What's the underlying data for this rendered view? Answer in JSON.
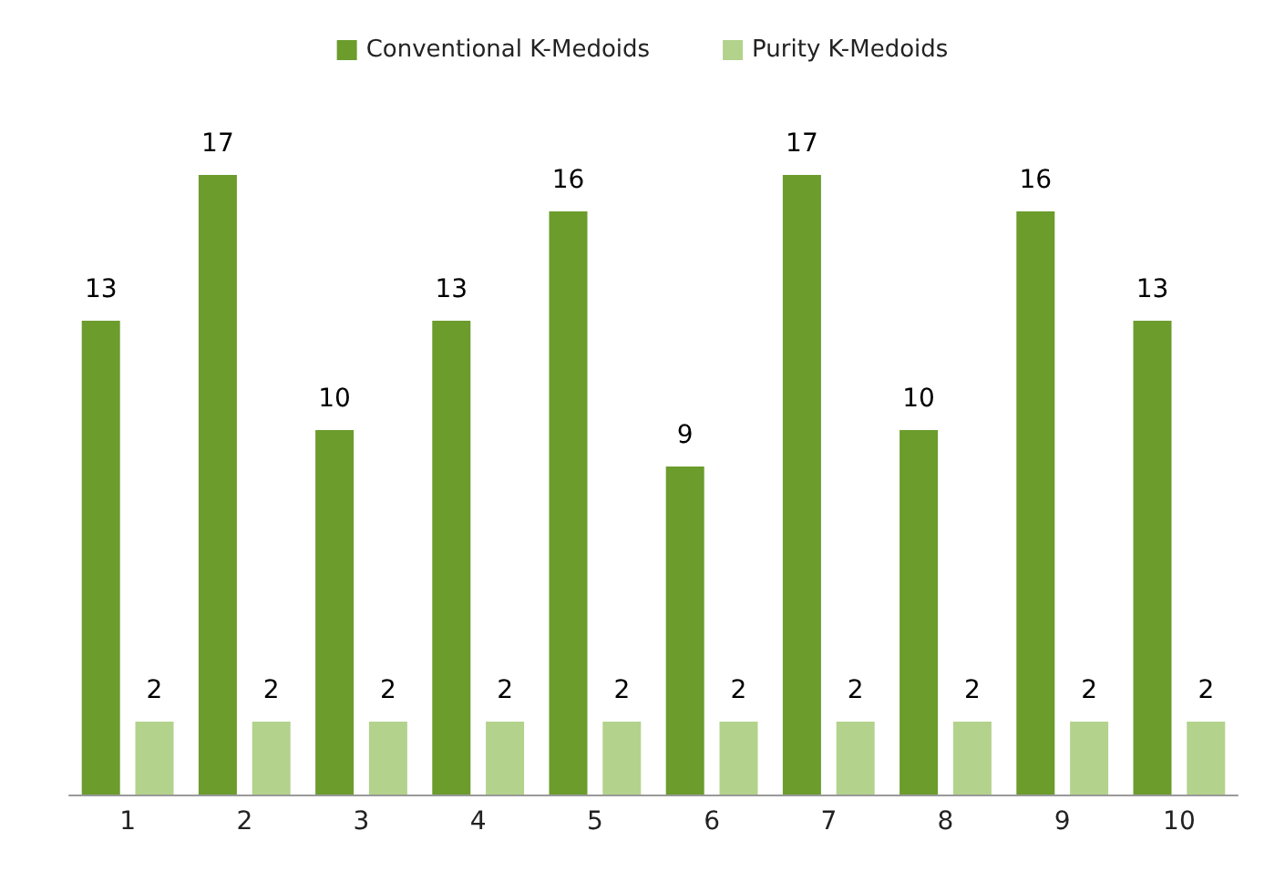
{
  "chart_data": {
    "type": "bar",
    "categories": [
      "1",
      "2",
      "3",
      "4",
      "5",
      "6",
      "7",
      "8",
      "9",
      "10"
    ],
    "series": [
      {
        "name": "Conventional K-Medoids",
        "color": "#6b9c2c",
        "values": [
          13,
          17,
          10,
          13,
          16,
          9,
          17,
          10,
          16,
          13
        ]
      },
      {
        "name": "Purity K-Medoids",
        "color": "#b3d28c",
        "values": [
          2,
          2,
          2,
          2,
          2,
          2,
          2,
          2,
          2,
          2
        ]
      }
    ],
    "data_labels": true,
    "legend": "top",
    "grid": false
  }
}
